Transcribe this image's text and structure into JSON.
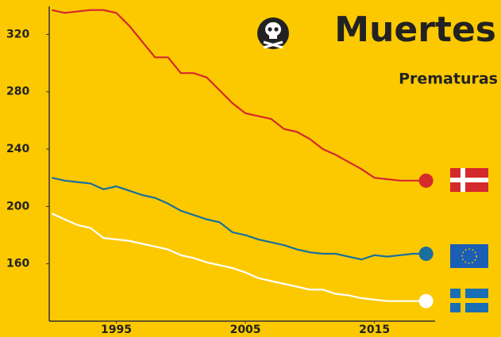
{
  "chart_data": {
    "type": "line",
    "title": "Muertes",
    "subtitle": "Prematuras",
    "x": [
      1990,
      1991,
      1992,
      1993,
      1994,
      1995,
      1996,
      1997,
      1998,
      1999,
      2000,
      2001,
      2002,
      2003,
      2004,
      2005,
      2006,
      2007,
      2008,
      2009,
      2010,
      2011,
      2012,
      2013,
      2014,
      2015,
      2016,
      2017,
      2018,
      2019
    ],
    "xlim": [
      1989.8,
      2019.7
    ],
    "xticks": [
      1995,
      2005,
      2015
    ],
    "ylim": [
      120,
      344
    ],
    "yticks": [
      160,
      200,
      240,
      280,
      320
    ],
    "series": [
      {
        "color": "#d42a2c",
        "values": [
          337,
          335,
          336,
          337,
          337,
          335,
          326,
          315,
          304,
          304,
          293,
          293,
          290,
          281,
          272,
          265,
          263,
          261,
          254,
          252,
          247,
          240,
          236,
          231,
          226,
          220,
          219,
          218,
          218,
          218
        ]
      },
      {
        "color": "#1a6f9e",
        "values": [
          220,
          218,
          217,
          216,
          212,
          214,
          211,
          208,
          206,
          202,
          197,
          194,
          191,
          189,
          182,
          180,
          177,
          175,
          173,
          170,
          168,
          167,
          167,
          165,
          163,
          166,
          165,
          166,
          167,
          167
        ]
      },
      {
        "color": "#ffffff",
        "values": [
          195,
          191,
          187,
          185,
          178,
          177,
          176,
          174,
          172,
          170,
          166,
          164,
          161,
          159,
          157,
          154,
          150,
          148,
          146,
          144,
          142,
          142,
          139,
          138,
          136,
          135,
          134,
          134,
          134,
          134
        ]
      }
    ]
  }
}
